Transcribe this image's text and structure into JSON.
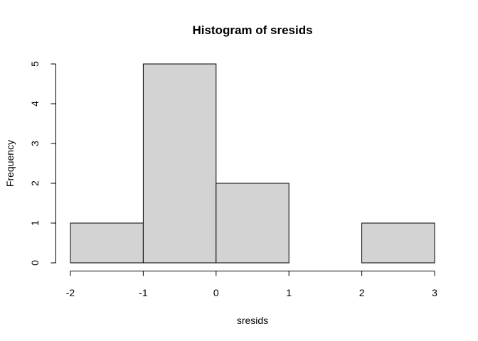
{
  "chart_data": {
    "type": "bar",
    "title": "Histogram of sresids",
    "xlabel": "sresids",
    "ylabel": "Frequency",
    "bins": [
      {
        "start": -2,
        "end": -1,
        "count": 1
      },
      {
        "start": -1,
        "end": 0,
        "count": 5
      },
      {
        "start": 0,
        "end": 1,
        "count": 2
      },
      {
        "start": 1,
        "end": 2,
        "count": 0
      },
      {
        "start": 2,
        "end": 3,
        "count": 1
      }
    ],
    "x_ticks": [
      "-2",
      "-1",
      "0",
      "1",
      "2",
      "3"
    ],
    "y_ticks": [
      "0",
      "1",
      "2",
      "3",
      "4",
      "5"
    ],
    "xlim": [
      -2,
      3
    ],
    "ylim": [
      0,
      5
    ],
    "grid": false,
    "bar_fill": "#d3d3d3",
    "bar_stroke": "#000000"
  }
}
